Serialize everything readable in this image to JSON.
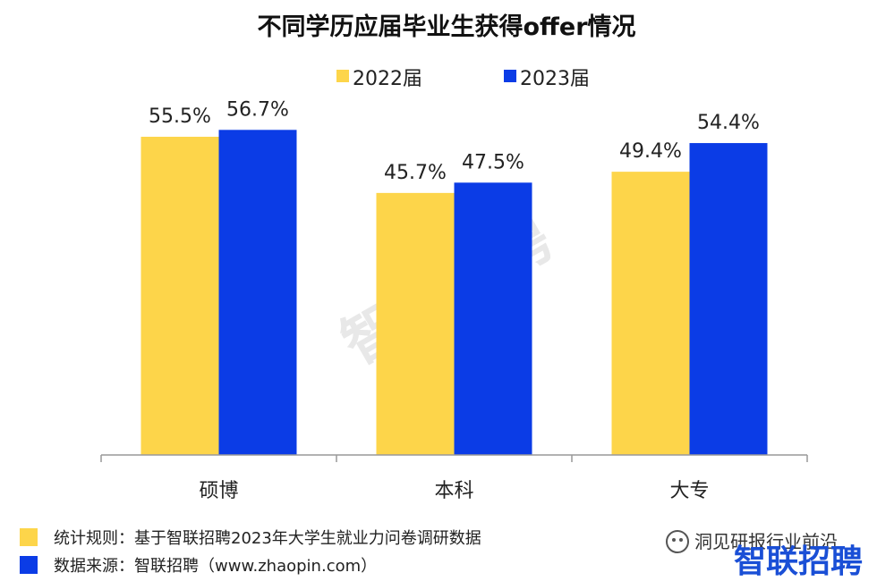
{
  "colors": {
    "series_2022": "#FDD54A",
    "series_2023": "#0B3CE6",
    "axis": "#999999"
  },
  "chart_data": {
    "type": "bar",
    "title": "不同学历应届毕业生获得offer情况",
    "categories": [
      "硕博",
      "本科",
      "大专"
    ],
    "series": [
      {
        "name": "2022届",
        "values": [
          55.5,
          45.7,
          49.4
        ],
        "labels": [
          "55.5%",
          "45.7%",
          "49.4%"
        ]
      },
      {
        "name": "2023届",
        "values": [
          56.7,
          47.5,
          54.4
        ],
        "labels": [
          "56.7%",
          "47.5%",
          "54.4%"
        ]
      }
    ],
    "ylim": [
      0,
      70
    ],
    "legend": "top-center",
    "grid": false
  },
  "footer": {
    "rule_text": "统计规则：基于智联招聘2023年大学生就业力问卷调研数据",
    "source_text": "数据来源：智联招聘（www.zhaopin.com）"
  },
  "watermark": "智联招聘",
  "brand": "智联招聘",
  "account": "洞见研报行业前沿"
}
